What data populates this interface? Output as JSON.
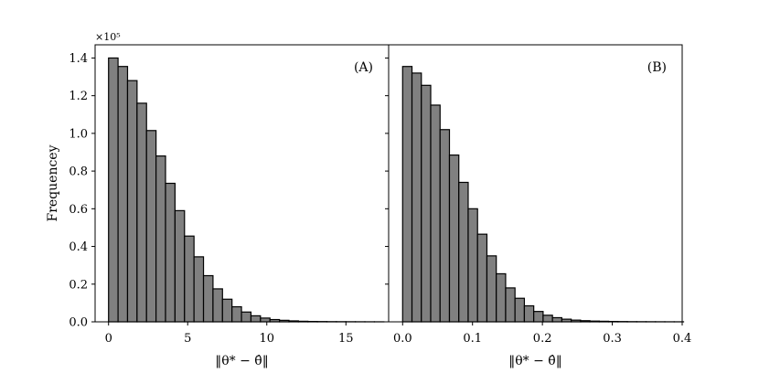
{
  "chart_data": {
    "type": "histogram",
    "ylabel": "Frequencey",
    "y_scale_label": "×10⁵",
    "ylim": [
      0,
      1.47
    ],
    "yticks": [
      0.0,
      0.2,
      0.4,
      0.6,
      0.8,
      1.0,
      1.2,
      1.4
    ],
    "ytick_labels": [
      "0.0",
      "0.2",
      "0.4",
      "0.6",
      "0.8",
      "1.0",
      "1.2",
      "1.4"
    ],
    "bar_fill": "#808080",
    "bar_edge": "#000000",
    "panels": [
      {
        "label": "(A)",
        "xlabel": "‖θ* − θ̂‖",
        "xlim": [
          -0.85,
          17.7
        ],
        "xticks": [
          0,
          5,
          10,
          15
        ],
        "xtick_labels": [
          "0",
          "5",
          "10",
          "15"
        ],
        "bin_width": 0.6,
        "bin_start": 0.0,
        "values": [
          1.4,
          1.355,
          1.28,
          1.16,
          1.015,
          0.88,
          0.735,
          0.59,
          0.455,
          0.345,
          0.245,
          0.175,
          0.12,
          0.08,
          0.052,
          0.032,
          0.02,
          0.012,
          0.008,
          0.005,
          0.003,
          0.002,
          0.0015,
          0.001,
          0.0008,
          0.0006,
          0.0004,
          0.0003,
          0.0002
        ]
      },
      {
        "label": "(B)",
        "xlabel": "‖θ* − θ̂‖",
        "xlim": [
          -0.02,
          0.4
        ],
        "xticks": [
          0.0,
          0.1,
          0.2,
          0.3,
          0.4
        ],
        "xtick_labels": [
          "0.0",
          "0.1",
          "0.2",
          "0.3",
          "0.4"
        ],
        "bin_width": 0.0134,
        "bin_start": 0.0,
        "values": [
          1.355,
          1.32,
          1.255,
          1.15,
          1.02,
          0.885,
          0.74,
          0.6,
          0.465,
          0.35,
          0.255,
          0.18,
          0.125,
          0.085,
          0.055,
          0.035,
          0.022,
          0.014,
          0.009,
          0.006,
          0.004,
          0.003,
          0.002,
          0.0015,
          0.001,
          0.0008,
          0.0006,
          0.0004,
          0.0003,
          0.0002
        ]
      }
    ]
  }
}
